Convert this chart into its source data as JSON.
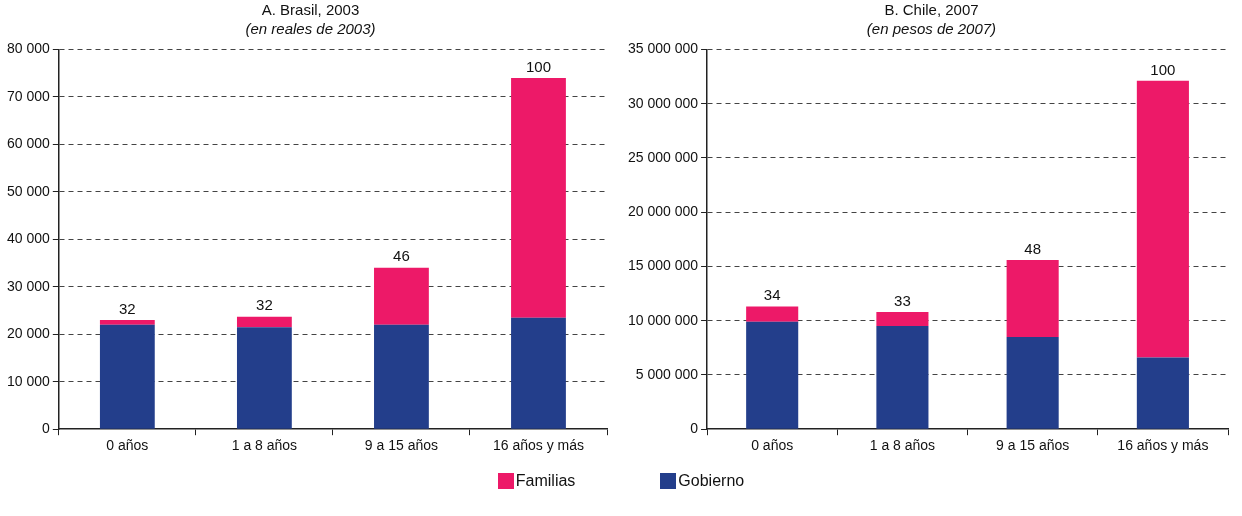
{
  "chart_data": [
    {
      "type": "bar",
      "title": "A. Brasil, 2003",
      "subtitle": "(en reales de 2003)",
      "categories": [
        "0 años",
        "1 a 8 años",
        "9 a 15 años",
        "16 años y más"
      ],
      "stacked": true,
      "series": [
        {
          "name": "Gobierno",
          "color": "#233e8b",
          "values": [
            22000,
            21500,
            22000,
            23500
          ]
        },
        {
          "name": "Familias",
          "color": "#ed1968",
          "values": [
            1000,
            2200,
            12000,
            50500
          ]
        }
      ],
      "annotations": [
        {
          "text": "32",
          "x": "0 años",
          "y": 23000
        },
        {
          "text": "32",
          "x": "1 a 8 años",
          "y": 23700
        },
        {
          "text": "46",
          "x": "9 a 15 años",
          "y": 34000
        },
        {
          "text": "100",
          "x": "16 años y más",
          "y": 74000
        }
      ],
      "ylim": [
        0,
        80000
      ],
      "yticks": [
        0,
        10000,
        20000,
        30000,
        40000,
        50000,
        60000,
        70000,
        80000
      ],
      "grid": "y",
      "legend": "bottom"
    },
    {
      "type": "bar",
      "title": "B. Chile, 2007",
      "subtitle": "(en pesos de 2007)",
      "categories": [
        "0 años",
        "1 a 8 años",
        "9 a 15 años",
        "16 años y más"
      ],
      "stacked": true,
      "series": [
        {
          "color": "#233e8b",
          "values": [
            9900000,
            9500000,
            8500000,
            6600000
          ]
        },
        {
          "color": "#ed1968",
          "values": [
            1400000,
            1300000,
            7100000,
            25500000
          ]
        }
      ],
      "annotations": [
        {
          "text": "34",
          "x": "0 años",
          "y": 11300000
        },
        {
          "text": "33",
          "x": "1 a 8 años",
          "y": 10800000
        },
        {
          "text": "48",
          "x": "9 a 15 años",
          "y": 15600000
        },
        {
          "text": "100",
          "x": "16 años y más",
          "y": 32100000
        }
      ],
      "ylim": [
        0,
        35000000
      ],
      "yticks": [
        0,
        5000000,
        10000000,
        15000000,
        20000000,
        25000000,
        30000000,
        35000000
      ],
      "grid": "y"
    }
  ]
}
